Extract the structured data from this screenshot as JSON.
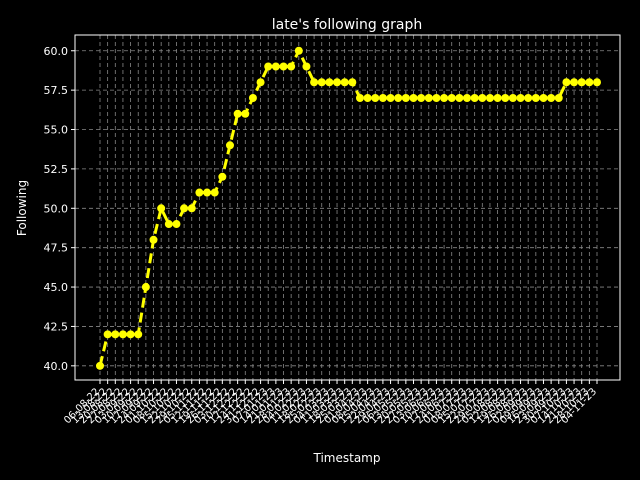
{
  "chart_data": {
    "type": "line",
    "title": "late's following graph",
    "xlabel": "Timestamp",
    "ylabel": "Following",
    "categories": [
      "06-08-22",
      "13-08-22",
      "20-08-22",
      "27-08-22",
      "03-09-22",
      "10-09-22",
      "17-09-22",
      "24-09-22",
      "01-10-22",
      "08-10-22",
      "15-10-22",
      "22-10-22",
      "29-10-22",
      "05-11-22",
      "12-11-22",
      "19-11-22",
      "26-11-22",
      "03-12-22",
      "10-12-22",
      "17-12-22",
      "24-12-22",
      "31-12-22",
      "07-01-23",
      "14-01-23",
      "21-01-23",
      "28-01-23",
      "04-02-23",
      "11-02-23",
      "18-02-23",
      "25-02-23",
      "04-03-23",
      "11-03-23",
      "18-03-23",
      "25-03-23",
      "01-04-23",
      "08-04-23",
      "15-04-23",
      "22-04-23",
      "29-04-23",
      "06-05-23",
      "13-05-23",
      "20-05-23",
      "27-05-23",
      "03-06-23",
      "10-06-23",
      "17-06-23",
      "24-06-23",
      "01-07-23",
      "08-07-23",
      "15-07-23",
      "22-07-23",
      "29-07-23",
      "05-08-23",
      "12-08-23",
      "19-08-23",
      "26-08-23",
      "02-09-23",
      "09-09-23",
      "16-09-23",
      "23-09-23",
      "30-09-23",
      "07-10-23",
      "14-10-23",
      "21-10-23",
      "28-10-23",
      "04-11-23"
    ],
    "series": [
      {
        "name": "Following",
        "color": "#ffff00",
        "values": [
          40,
          42,
          42,
          42,
          42,
          42,
          45,
          48,
          50,
          49,
          49,
          50,
          50,
          51,
          51,
          51,
          52,
          54,
          56,
          56,
          57,
          58,
          59,
          59,
          59,
          59,
          60,
          59,
          58,
          58,
          58,
          58,
          58,
          58,
          57,
          57,
          57,
          57,
          57,
          57,
          57,
          57,
          57,
          57,
          57,
          57,
          57,
          57,
          57,
          57,
          57,
          57,
          57,
          57,
          57,
          57,
          57,
          57,
          57,
          57,
          57,
          58,
          58,
          58,
          58,
          58
        ]
      }
    ],
    "ylim": [
      39.1,
      61.0
    ],
    "yticks": [
      {
        "value": 40,
        "label": "40.0"
      },
      {
        "value": 42.5,
        "label": "42.5"
      },
      {
        "value": 45,
        "label": "45.0"
      },
      {
        "value": 47.5,
        "label": "47.5"
      },
      {
        "value": 50,
        "label": "50.0"
      },
      {
        "value": 52.5,
        "label": "52.5"
      },
      {
        "value": 55,
        "label": "55.0"
      },
      {
        "value": 57.5,
        "label": "57.5"
      },
      {
        "value": 60,
        "label": "60.0"
      }
    ],
    "grid": true,
    "linestyle": "dashed",
    "marker": "circle"
  }
}
